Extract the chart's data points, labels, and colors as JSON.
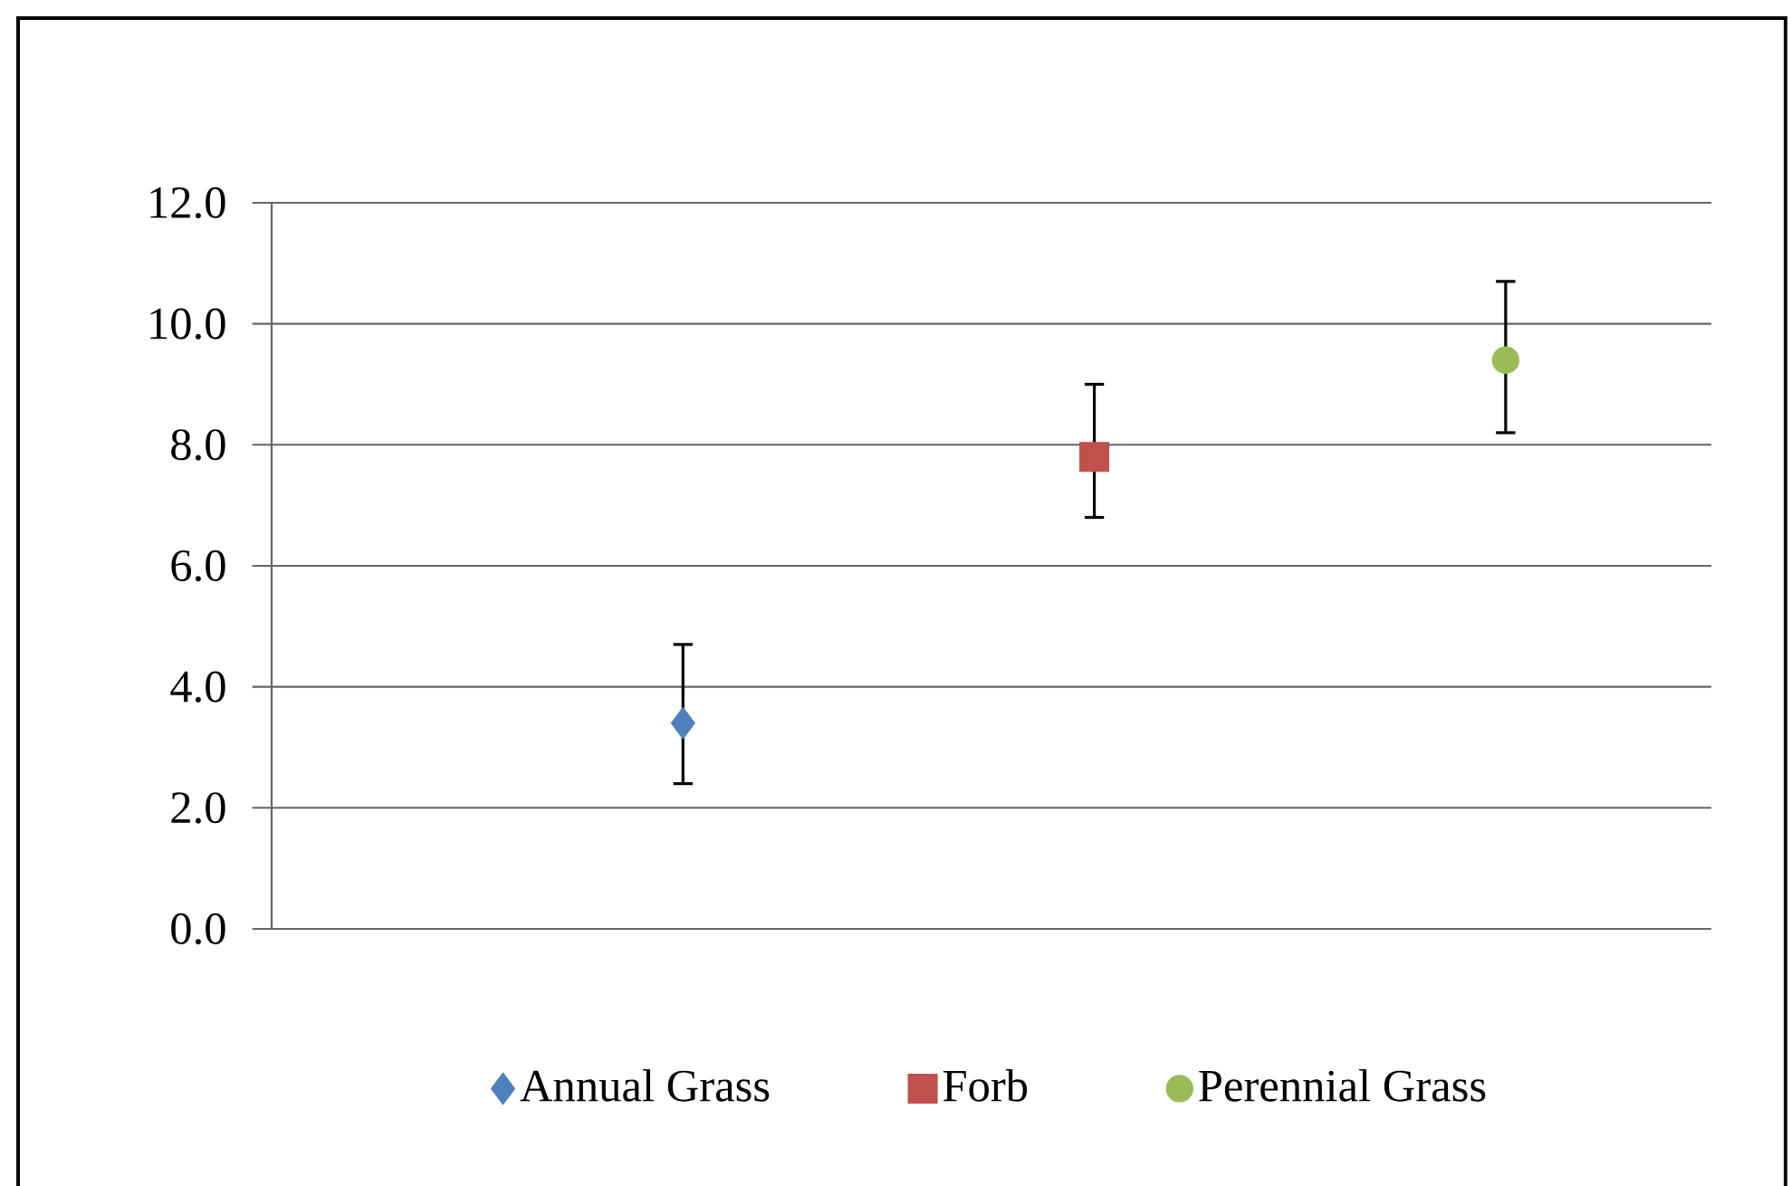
{
  "chart_data": {
    "type": "scatter",
    "categories": [
      null,
      null,
      null
    ],
    "ylim": [
      0,
      12
    ],
    "yticks": [
      {
        "value": 0,
        "label": "0.0"
      },
      {
        "value": 2,
        "label": "2.0"
      },
      {
        "value": 4,
        "label": "4.0"
      },
      {
        "value": 6,
        "label": "6.0"
      },
      {
        "value": 8,
        "label": "8.0"
      },
      {
        "value": 10,
        "label": "10.0"
      },
      {
        "value": 12,
        "label": "12.0"
      }
    ],
    "tick_labels": "y",
    "grid": "y",
    "legend": "bottom",
    "series": [
      {
        "name": "Annual Grass",
        "color": "#4f81bd",
        "marker": "diamond",
        "values": [
          3.4,
          null,
          null
        ],
        "errors": [
          [
            2.4,
            4.7
          ],
          null,
          null
        ]
      },
      {
        "name": "Forb",
        "color": "#c0504d",
        "marker": "square",
        "values": [
          null,
          7.8,
          null
        ],
        "errors": [
          null,
          [
            6.8,
            9.0
          ],
          null
        ]
      },
      {
        "name": "Perennial  Grass",
        "color": "#9bbb59",
        "marker": "circle",
        "values": [
          null,
          null,
          9.4
        ],
        "errors": [
          null,
          null,
          [
            8.2,
            10.7
          ]
        ]
      }
    ]
  }
}
